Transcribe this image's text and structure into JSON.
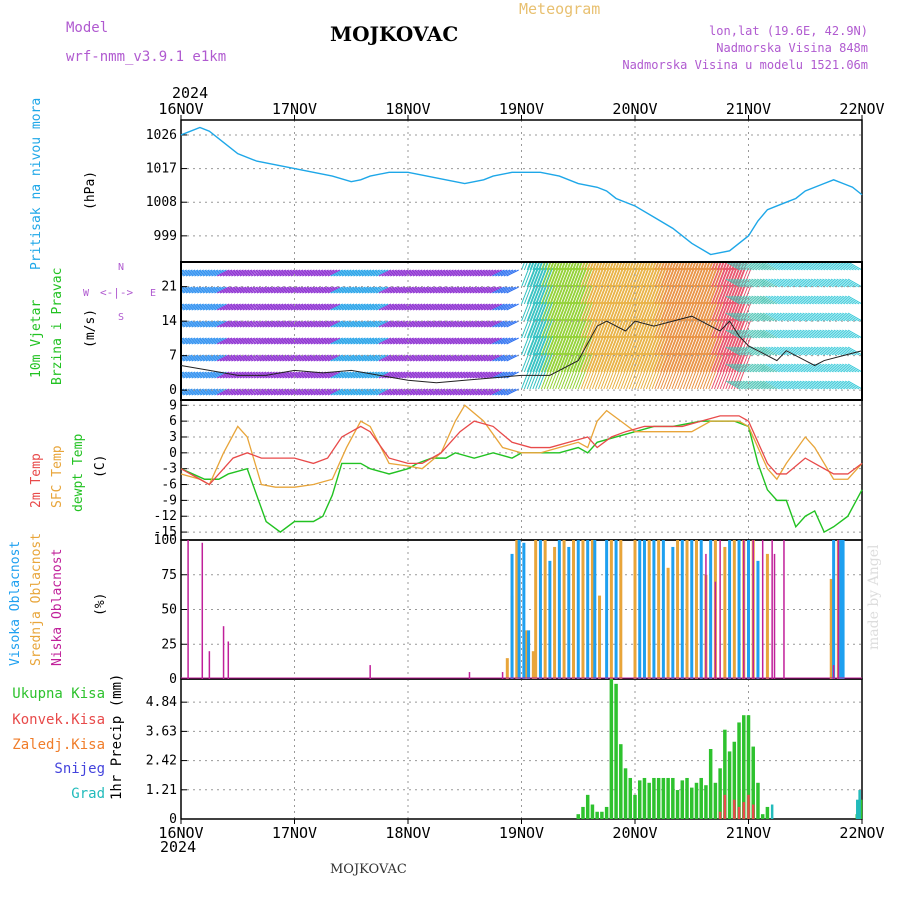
{
  "header": {
    "model_label": "Model",
    "model_name": "wrf-nmm_v3.9.1 e1km",
    "station": "MOJKOVAC",
    "meteogram": "Meteogram",
    "lonlat": "lon,lat (19.6E, 42.9N)",
    "elevation": "Nadmorska Visina 848m",
    "model_elevation": "Nadmorska Visina u modelu 1521.06m",
    "year_top": "2024",
    "year_bottom": "2024",
    "footer_station": "MOJKOVAC",
    "credit": "made by Angel"
  },
  "colors": {
    "pressure": "#1ea7e8",
    "temp2m": "#e84a4a",
    "sfc": "#e8a53a",
    "dewpt": "#22c222",
    "high_cloud": "#1ea0f0",
    "mid_cloud": "#e8a53a",
    "low_cloud": "#c0209a",
    "precip_total": "#2ec22e",
    "precip_conv": "#e84a4a",
    "precip_frozen": "#f07d2a",
    "snow": "#4444dd",
    "hail": "#22bbbb",
    "purple": "#b05ad0"
  },
  "x_axis": {
    "ticks": [
      "16NOV",
      "17NOV",
      "18NOV",
      "19NOV",
      "20NOV",
      "21NOV",
      "22NOV"
    ],
    "range_hours": [
      0,
      144
    ]
  },
  "chart_data": [
    {
      "type": "line",
      "panel": "pressure",
      "ylabel_left": "Pritisak na nivou mora",
      "unit": "(hPa)",
      "yticks": [
        "999",
        "1008",
        "1017",
        "1026"
      ],
      "ylim": [
        992,
        1030
      ],
      "series": [
        {
          "x": [
            0,
            4,
            6,
            9,
            12,
            16,
            20,
            24,
            28,
            32,
            36,
            38,
            40,
            44,
            48,
            52,
            56,
            60,
            64,
            66,
            70,
            72,
            76,
            80,
            84,
            88,
            90,
            92,
            96,
            100,
            104,
            108,
            112,
            116,
            120,
            122,
            124,
            126,
            128,
            130,
            132,
            136,
            138,
            140,
            142,
            144
          ],
          "values": [
            1026,
            1028,
            1027,
            1024,
            1021,
            1019,
            1018,
            1017,
            1016,
            1015,
            1013.5,
            1014,
            1015,
            1016,
            1016,
            1015,
            1014,
            1013,
            1014,
            1015,
            1016,
            1016,
            1016,
            1015,
            1013,
            1012,
            1011,
            1009,
            1007,
            1004,
            1001,
            997,
            994,
            995,
            999,
            1003,
            1006,
            1007,
            1008,
            1009,
            1011,
            1013,
            1014,
            1013,
            1012,
            1010
          ]
        }
      ]
    },
    {
      "type": "line",
      "panel": "wind",
      "ylabel_left": [
        "10m Vjetar",
        "Brzina i Pravac"
      ],
      "unit": "(m/s)",
      "compass": {
        "north": "N",
        "south": "S",
        "east": "E",
        "west": "W"
      },
      "yticks": [
        "0",
        "7",
        "14",
        "21"
      ],
      "ylim": [
        -2,
        26
      ],
      "series": [
        {
          "x": [
            0,
            6,
            12,
            18,
            24,
            30,
            36,
            42,
            48,
            54,
            60,
            66,
            72,
            78,
            80,
            84,
            88,
            90,
            94,
            96,
            100,
            104,
            108,
            112,
            114,
            116,
            118,
            120,
            124,
            126,
            128,
            132,
            134,
            136,
            140,
            144
          ],
          "values": [
            5,
            4,
            3,
            3,
            4,
            3.5,
            4,
            3,
            2,
            1.5,
            2,
            2.5,
            3,
            3,
            4,
            6,
            13,
            14,
            12,
            14,
            13,
            14,
            15,
            13,
            12,
            14,
            11,
            9,
            7,
            6,
            8,
            6,
            5,
            6,
            7,
            8
          ]
        }
      ]
    },
    {
      "type": "line",
      "panel": "temperature",
      "ylabel_left": [
        "2m Temp",
        "SFC Temp",
        "dewpt Temp"
      ],
      "unit": "(C)",
      "yticks": [
        "-15",
        "-12",
        "-9",
        "-6",
        "-3",
        "0",
        "3",
        "6",
        "9"
      ],
      "ylim": [
        -16.5,
        10
      ],
      "series": [
        {
          "name": "2m Temp",
          "x": [
            0,
            4,
            6,
            9,
            11,
            14,
            17,
            20,
            24,
            28,
            31,
            34,
            38,
            40,
            44,
            48,
            51,
            55,
            59,
            62,
            66,
            70,
            74,
            78,
            82,
            86,
            88,
            91,
            94,
            98,
            102,
            106,
            110,
            114,
            118,
            120,
            122,
            124,
            126,
            128,
            132,
            134,
            138,
            141,
            144
          ],
          "values": [
            -3,
            -5,
            -6,
            -3,
            -1,
            0,
            -1,
            -1,
            -1,
            -2,
            -1,
            3,
            5,
            4,
            -1,
            -2,
            -2,
            0,
            4,
            6,
            5,
            2,
            1,
            1,
            2,
            3,
            1,
            3,
            4,
            5,
            5,
            5,
            6,
            7,
            7,
            6,
            2,
            -2,
            -4,
            -4,
            -1,
            -2,
            -4,
            -4,
            -2
          ]
        },
        {
          "name": "SFC Temp",
          "x": [
            0,
            4,
            6,
            9,
            12,
            14,
            17,
            20,
            24,
            28,
            32,
            35,
            38,
            40,
            44,
            48,
            51,
            55,
            58,
            60,
            64,
            68,
            72,
            76,
            80,
            84,
            86,
            88,
            90,
            93,
            96,
            100,
            104,
            108,
            112,
            116,
            118,
            120,
            122,
            124,
            126,
            128,
            132,
            134,
            138,
            141,
            144
          ],
          "values": [
            -4,
            -5,
            -6,
            0,
            5,
            3,
            -6,
            -6.5,
            -6.5,
            -6,
            -5,
            1,
            6,
            5,
            -2,
            -2.5,
            -3,
            0,
            6,
            9,
            6,
            1,
            0,
            0,
            1,
            2,
            1,
            6,
            8,
            6,
            4,
            4,
            4,
            4,
            6,
            6,
            6,
            5,
            1,
            -3,
            -5,
            -2,
            3,
            1,
            -5,
            -5,
            -2
          ]
        },
        {
          "name": "dewpt Temp",
          "x": [
            0,
            5,
            8,
            10,
            14,
            18,
            21,
            24,
            28,
            30,
            32,
            34,
            38,
            40,
            44,
            48,
            50,
            53,
            56,
            58,
            62,
            66,
            70,
            72,
            76,
            80,
            84,
            86,
            88,
            92,
            96,
            100,
            104,
            110,
            114,
            117,
            120,
            122,
            124,
            126,
            128,
            130,
            132,
            134,
            136,
            138,
            141,
            144
          ],
          "values": [
            -3,
            -5,
            -5,
            -4,
            -3,
            -13,
            -15,
            -13,
            -13,
            -12,
            -8,
            -2,
            -2,
            -3,
            -4,
            -3,
            -2,
            -1,
            -1,
            0,
            -1,
            0,
            -1,
            0,
            0,
            0,
            1,
            0,
            2,
            3,
            4,
            5,
            5,
            6,
            6,
            6,
            5,
            -2,
            -7,
            -9,
            -9,
            -14,
            -12,
            -11,
            -15,
            -14,
            -12,
            -7
          ]
        }
      ]
    },
    {
      "type": "bar",
      "panel": "clouds",
      "ylabel_left": [
        "Visoka Oblacnost",
        "Srednja Oblacnost",
        "Niska Oblacnost"
      ],
      "unit": "(%)",
      "yticks": [
        "0",
        "25",
        "50",
        "75",
        "100"
      ],
      "ylim": [
        0,
        100
      ],
      "series": [
        {
          "name": "Niska Oblacnost",
          "x": [
            1.5,
            4.5,
            6,
            9,
            10,
            40,
            61,
            68,
            111,
            113,
            114,
            119,
            121,
            123,
            125,
            125.5,
            127.5,
            138,
            139
          ],
          "values": [
            100,
            98,
            20,
            38,
            27,
            10,
            5,
            5,
            90,
            70,
            100,
            100,
            100,
            100,
            100,
            90,
            100,
            10,
            100
          ]
        },
        {
          "name": "Srednja Oblacnost",
          "x": [
            69,
            70,
            71,
            73,
            74.5,
            75,
            77,
            79,
            81,
            83,
            85,
            87,
            88.5,
            91,
            93,
            96,
            99,
            101,
            103,
            105,
            107,
            109,
            111,
            113,
            115,
            117,
            119,
            121,
            124,
            137.5,
            139
          ],
          "values": [
            15,
            60,
            100,
            35,
            20,
            100,
            100,
            95,
            100,
            100,
            100,
            100,
            60,
            100,
            100,
            100,
            100,
            100,
            80,
            100,
            100,
            100,
            75,
            100,
            95,
            100,
            100,
            100,
            90,
            72,
            100
          ]
        },
        {
          "name": "Visoka Oblacnost",
          "x": [
            70,
            71.5,
            72.5,
            73.5,
            76,
            78,
            80,
            82,
            84,
            86,
            87.5,
            90,
            92,
            97,
            98,
            100,
            102,
            104,
            106,
            108,
            110,
            112,
            116,
            118,
            120,
            122,
            138,
            139.5,
            140
          ],
          "values": [
            90,
            100,
            98,
            35,
            100,
            85,
            100,
            95,
            100,
            100,
            100,
            100,
            100,
            100,
            100,
            100,
            100,
            95,
            100,
            100,
            100,
            100,
            100,
            100,
            100,
            85,
            100,
            100,
            100
          ]
        }
      ]
    },
    {
      "type": "bar",
      "panel": "precip",
      "ylabel_left": "1hr Precip (mm)",
      "legend": [
        "Ukupna Kisa",
        "Konvek.Kisa",
        "Zaledj.Kisa",
        "Snijeg",
        "Grad"
      ],
      "yticks": [
        "0",
        "1.21",
        "2.42",
        "3.63",
        "4.84"
      ],
      "ylim": [
        0,
        5.8
      ],
      "series": [
        {
          "name": "Ukupna Kisa",
          "x": [
            84,
            85,
            86,
            87,
            88,
            89,
            90,
            91,
            92,
            93,
            94,
            95,
            96,
            97,
            98,
            99,
            100,
            101,
            102,
            103,
            104,
            105,
            106,
            107,
            108,
            109,
            110,
            111,
            112,
            113,
            114,
            115,
            116,
            117,
            118,
            119,
            120,
            121,
            122,
            123,
            124,
            125,
            126,
            127,
            128,
            129,
            130,
            131,
            132,
            133,
            134,
            135,
            136,
            137,
            138,
            139,
            140,
            141,
            142,
            143,
            143.7
          ],
          "values": [
            0.2,
            0.5,
            1,
            0.6,
            0.3,
            0.3,
            0.5,
            5.8,
            5.6,
            3.1,
            2.1,
            1.7,
            1,
            1.6,
            1.7,
            1.5,
            1.7,
            1.7,
            1.7,
            1.7,
            1.7,
            1.2,
            1.6,
            1.7,
            1.3,
            1.5,
            1.7,
            1.4,
            2.9,
            1.5,
            2.1,
            3.7,
            2.8,
            3.2,
            4,
            4.3,
            4.3,
            3,
            1.5,
            0.2,
            0.5,
            0,
            0,
            0,
            0,
            0,
            0,
            0,
            0,
            0,
            0,
            0,
            0,
            0,
            0,
            0,
            0,
            0,
            0,
            0.2,
            0.8
          ]
        },
        {
          "name": "Konvek.Kisa",
          "x": [
            114,
            115,
            117,
            118,
            119,
            120,
            121
          ],
          "values": [
            0.3,
            1,
            0.8,
            0.5,
            0.7,
            1,
            0.6
          ]
        },
        {
          "name": "Grad",
          "x": [
            125,
            143,
            143.5
          ],
          "values": [
            0.6,
            0.8,
            1.2
          ]
        }
      ]
    }
  ]
}
